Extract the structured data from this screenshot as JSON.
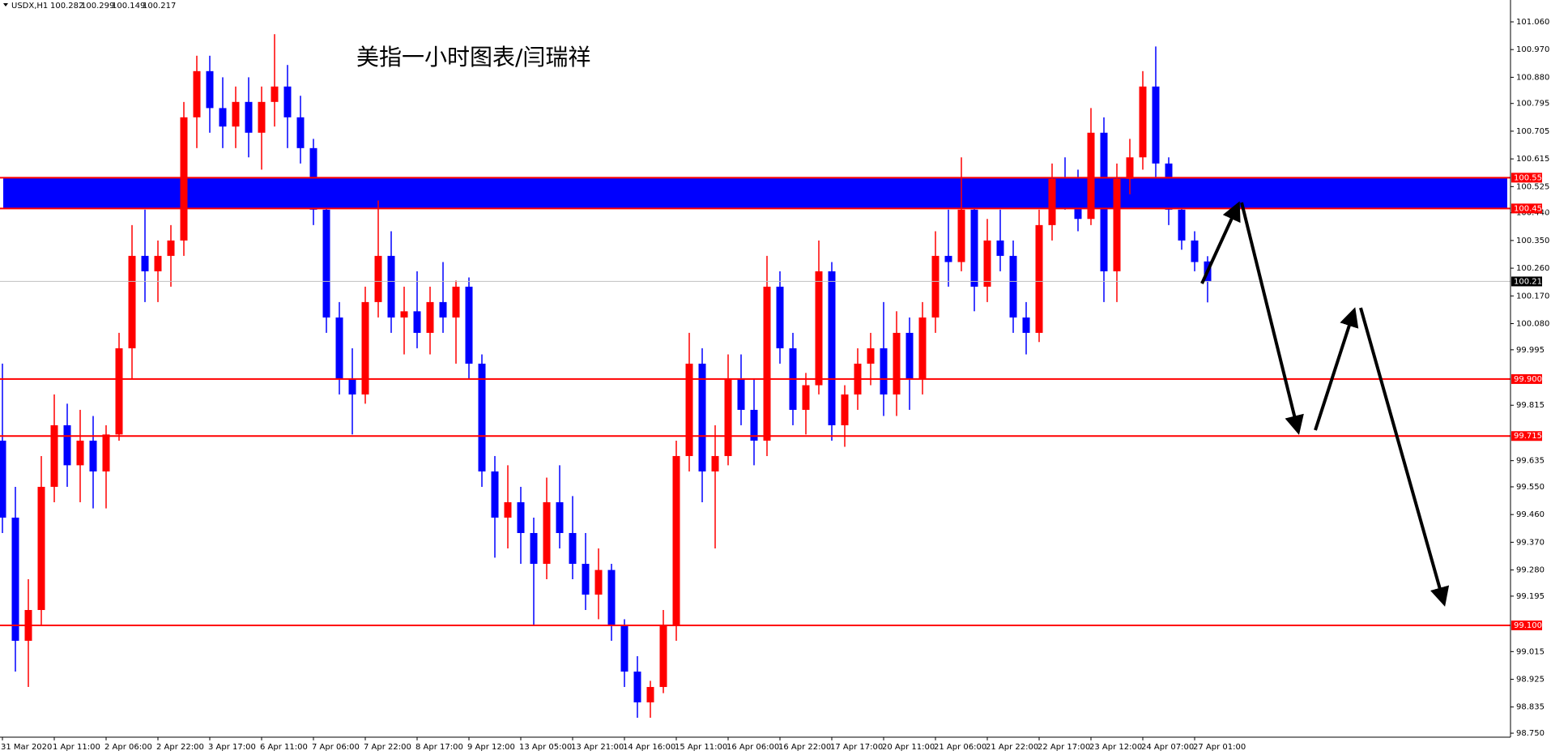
{
  "chart_data": {
    "type": "candlestick",
    "symbol": "USDX,H1",
    "title": "美指一小时图表/闫瑞祥",
    "categories": [
      "31 Mar 2020",
      null,
      null,
      null,
      "1 Apr 11:00",
      null,
      null,
      null,
      "2 Apr 06:00",
      null,
      null,
      null,
      "2 Apr 22:00",
      null,
      null,
      null,
      "3 Apr 17:00",
      null,
      null,
      null,
      "6 Apr 11:00",
      null,
      null,
      null,
      "7 Apr 06:00",
      null,
      null,
      null,
      "7 Apr 22:00",
      null,
      null,
      null,
      "8 Apr 17:00",
      null,
      null,
      null,
      "9 Apr 12:00",
      null,
      null,
      null,
      "13 Apr 05:00",
      null,
      null,
      null,
      "13 Apr 21:00",
      null,
      null,
      null,
      "14 Apr 16:00",
      null,
      null,
      null,
      "15 Apr 11:00",
      null,
      null,
      null,
      "16 Apr 06:00",
      null,
      null,
      null,
      "16 Apr 22:00",
      null,
      null,
      null,
      "17 Apr 17:00",
      null,
      null,
      null,
      "20 Apr 11:00",
      null,
      null,
      null,
      "21 Apr 06:00",
      null,
      null,
      null,
      "21 Apr 22:00",
      null,
      null,
      null,
      "22 Apr 17:00",
      null,
      null,
      null,
      "23 Apr 12:00",
      null,
      null,
      null,
      "24 Apr 07:00",
      null,
      null,
      null,
      "27 Apr 01:00",
      null
    ],
    "open": [
      99.7,
      99.45,
      99.05,
      99.15,
      99.55,
      99.75,
      99.62,
      99.7,
      99.6,
      99.72,
      100.0,
      100.3,
      100.25,
      100.3,
      100.35,
      100.75,
      100.9,
      100.78,
      100.72,
      100.8,
      100.7,
      100.8,
      100.85,
      100.75,
      100.65,
      100.45,
      100.1,
      99.9,
      99.85,
      100.15,
      100.3,
      100.1,
      100.12,
      100.05,
      100.15,
      100.1,
      100.2,
      99.95,
      99.6,
      99.45,
      99.5,
      99.4,
      99.3,
      99.5,
      99.4,
      99.3,
      99.2,
      99.28,
      99.1,
      98.95,
      98.85,
      98.9,
      99.1,
      99.65,
      99.95,
      99.6,
      99.65,
      99.9,
      99.8,
      99.7,
      100.2,
      100.0,
      99.8,
      99.88,
      100.25,
      99.75,
      99.85,
      99.95,
      100.0,
      99.85,
      100.05,
      99.9,
      100.1,
      100.3,
      100.28,
      100.45,
      100.2,
      100.35,
      100.3,
      100.1,
      100.05,
      100.4,
      100.55,
      100.5,
      100.42,
      100.7,
      100.25,
      100.55,
      100.62,
      100.85,
      100.6,
      100.45,
      100.35,
      100.282
    ],
    "high": [
      99.95,
      99.55,
      99.25,
      99.65,
      99.85,
      99.82,
      99.8,
      99.78,
      99.75,
      100.05,
      100.4,
      100.45,
      100.35,
      100.4,
      100.8,
      100.95,
      100.95,
      100.88,
      100.85,
      100.88,
      100.85,
      101.02,
      100.92,
      100.82,
      100.68,
      100.48,
      100.15,
      100.0,
      100.2,
      100.48,
      100.38,
      100.2,
      100.25,
      100.2,
      100.28,
      100.22,
      100.23,
      99.98,
      99.65,
      99.62,
      99.55,
      99.45,
      99.58,
      99.62,
      99.52,
      99.4,
      99.35,
      99.3,
      99.12,
      99.0,
      98.92,
      99.15,
      99.7,
      100.05,
      100.0,
      99.75,
      99.98,
      99.98,
      99.9,
      100.3,
      100.25,
      100.05,
      99.92,
      100.35,
      100.28,
      99.88,
      100.0,
      100.05,
      100.15,
      100.12,
      100.1,
      100.15,
      100.38,
      100.45,
      100.62,
      100.48,
      100.42,
      100.45,
      100.35,
      100.15,
      100.45,
      100.6,
      100.62,
      100.58,
      100.78,
      100.75,
      100.6,
      100.68,
      100.9,
      100.98,
      100.62,
      100.52,
      100.38,
      100.299
    ],
    "low": [
      99.4,
      98.95,
      98.9,
      99.1,
      99.5,
      99.55,
      99.5,
      99.48,
      99.48,
      99.7,
      99.9,
      100.15,
      100.15,
      100.2,
      100.3,
      100.65,
      100.7,
      100.65,
      100.65,
      100.62,
      100.58,
      100.72,
      100.65,
      100.6,
      100.4,
      100.05,
      99.85,
      99.72,
      99.82,
      100.1,
      100.05,
      99.98,
      100.0,
      99.98,
      100.05,
      99.95,
      99.9,
      99.55,
      99.32,
      99.35,
      99.3,
      99.1,
      99.25,
      99.35,
      99.25,
      99.15,
      99.12,
      99.05,
      98.9,
      98.8,
      98.8,
      98.88,
      99.05,
      99.6,
      99.5,
      99.35,
      99.62,
      99.75,
      99.62,
      99.65,
      99.95,
      99.75,
      99.72,
      99.85,
      99.7,
      99.68,
      99.8,
      99.88,
      99.78,
      99.78,
      99.8,
      99.85,
      100.05,
      100.2,
      100.25,
      100.12,
      100.15,
      100.25,
      100.05,
      99.98,
      100.02,
      100.35,
      100.45,
      100.38,
      100.4,
      100.15,
      100.15,
      100.5,
      100.58,
      100.55,
      100.4,
      100.32,
      100.25,
      100.149
    ],
    "close": [
      99.45,
      99.05,
      99.15,
      99.55,
      99.75,
      99.62,
      99.7,
      99.6,
      99.72,
      100.0,
      100.3,
      100.25,
      100.3,
      100.35,
      100.75,
      100.9,
      100.78,
      100.72,
      100.8,
      100.7,
      100.8,
      100.85,
      100.75,
      100.65,
      100.45,
      100.1,
      99.9,
      99.85,
      100.15,
      100.3,
      100.1,
      100.12,
      100.05,
      100.15,
      100.1,
      100.2,
      99.95,
      99.6,
      99.45,
      99.5,
      99.4,
      99.3,
      99.5,
      99.4,
      99.3,
      99.2,
      99.28,
      99.1,
      98.95,
      98.85,
      98.9,
      99.1,
      99.65,
      99.95,
      99.6,
      99.65,
      99.9,
      99.8,
      99.7,
      100.2,
      100.0,
      99.8,
      99.88,
      100.25,
      99.75,
      99.85,
      99.95,
      100.0,
      99.85,
      100.05,
      99.9,
      100.1,
      100.3,
      100.28,
      100.45,
      100.2,
      100.35,
      100.3,
      100.1,
      100.05,
      100.4,
      100.55,
      100.5,
      100.42,
      100.7,
      100.25,
      100.55,
      100.62,
      100.85,
      100.6,
      100.45,
      100.35,
      100.28,
      100.217
    ],
    "up_color": "#ff0000",
    "down_color": "#0000ff",
    "ylim": [
      98.737,
      101.131
    ],
    "yticks": [
      {
        "value": 101.06,
        "label": "101.060"
      },
      {
        "value": 100.97,
        "label": "100.970"
      },
      {
        "value": 100.88,
        "label": "100.880"
      },
      {
        "value": 100.795,
        "label": "100.795"
      },
      {
        "value": 100.705,
        "label": "100.705"
      },
      {
        "value": 100.615,
        "label": "100.615"
      },
      {
        "value": 100.525,
        "label": "100.525"
      },
      {
        "value": 100.44,
        "label": "100.440"
      },
      {
        "value": 100.35,
        "label": "100.350"
      },
      {
        "value": 100.26,
        "label": "100.260"
      },
      {
        "value": 100.17,
        "label": "100.170"
      },
      {
        "value": 100.08,
        "label": "100.080"
      },
      {
        "value": 99.995,
        "label": "99.995"
      },
      {
        "value": 99.815,
        "label": "99.815"
      },
      {
        "value": 99.635,
        "label": "99.635"
      },
      {
        "value": 99.55,
        "label": "99.550"
      },
      {
        "value": 99.46,
        "label": "99.460"
      },
      {
        "value": 99.37,
        "label": "99.370"
      },
      {
        "value": 99.28,
        "label": "99.280"
      },
      {
        "value": 99.195,
        "label": "99.195"
      },
      {
        "value": 99.015,
        "label": "99.015"
      },
      {
        "value": 98.925,
        "label": "98.925"
      },
      {
        "value": 98.835,
        "label": "98.835"
      },
      {
        "value": 98.75,
        "label": "98.750"
      }
    ],
    "levels": [
      100.554,
      100.454,
      {
        "value": 99.9,
        "label": "99.900"
      },
      99.715,
      {
        "value": 99.1,
        "label": "99.100"
      }
    ],
    "level_color": "#ff0000",
    "zone_color": "#0000ff"
  }
}
